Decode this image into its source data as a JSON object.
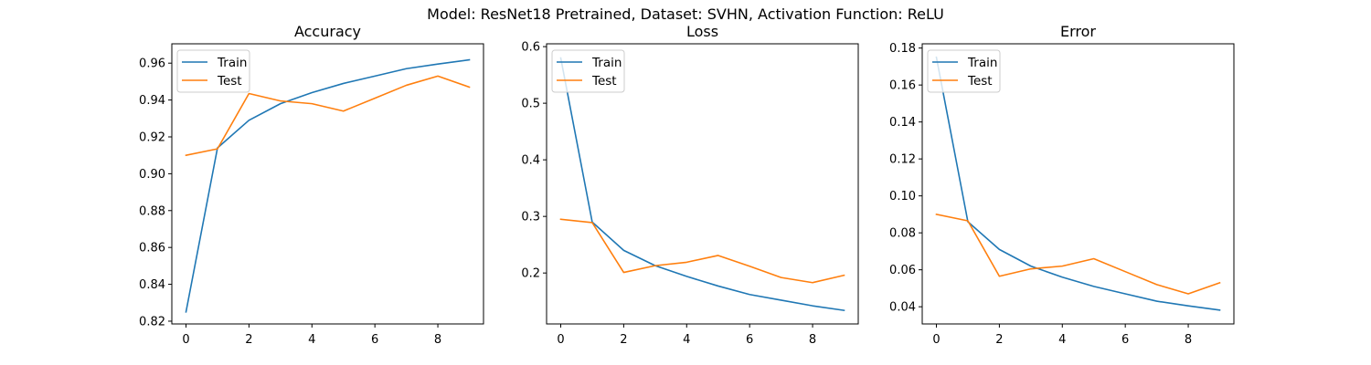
{
  "suptitle": "Model: ResNet18 Pretrained, Dataset: SVHN, Activation Function: ReLU",
  "colors": {
    "train": "#1f77b4",
    "test": "#ff7f0e"
  },
  "chart_data": [
    {
      "type": "line",
      "title": "Accuracy",
      "xlabel": "",
      "ylabel": "",
      "x": [
        0,
        1,
        2,
        3,
        4,
        5,
        6,
        7,
        8,
        9
      ],
      "xlim": [
        -0.45,
        9.45
      ],
      "ylim": [
        0.8185,
        0.9705
      ],
      "xticks": [
        0,
        2,
        4,
        6,
        8
      ],
      "yticks": [
        0.82,
        0.84,
        0.86,
        0.88,
        0.9,
        0.92,
        0.94,
        0.96
      ],
      "yticks_labels": [
        "0.82",
        "0.84",
        "0.86",
        "0.88",
        "0.90",
        "0.92",
        "0.94",
        "0.96"
      ],
      "legend": "top-left",
      "grid": false,
      "series": [
        {
          "name": "Train",
          "values": [
            0.825,
            0.914,
            0.929,
            0.938,
            0.944,
            0.949,
            0.953,
            0.957,
            0.9595,
            0.9618
          ]
        },
        {
          "name": "Test",
          "values": [
            0.91,
            0.9135,
            0.9435,
            0.9395,
            0.938,
            0.934,
            0.941,
            0.948,
            0.953,
            0.947
          ]
        }
      ]
    },
    {
      "type": "line",
      "title": "Loss",
      "xlabel": "",
      "ylabel": "",
      "x": [
        0,
        1,
        2,
        3,
        4,
        5,
        6,
        7,
        8,
        9
      ],
      "xlim": [
        -0.45,
        9.45
      ],
      "ylim": [
        0.11,
        0.605
      ],
      "xticks": [
        0,
        2,
        4,
        6,
        8
      ],
      "yticks": [
        0.2,
        0.3,
        0.4,
        0.5,
        0.6
      ],
      "yticks_labels": [
        "0.2",
        "0.3",
        "0.4",
        "0.5",
        "0.6"
      ],
      "legend": "top-left",
      "grid": false,
      "series": [
        {
          "name": "Train",
          "values": [
            0.58,
            0.29,
            0.24,
            0.213,
            0.194,
            0.177,
            0.162,
            0.152,
            0.142,
            0.134
          ]
        },
        {
          "name": "Test",
          "values": [
            0.295,
            0.289,
            0.201,
            0.213,
            0.219,
            0.231,
            0.212,
            0.192,
            0.183,
            0.196
          ]
        }
      ]
    },
    {
      "type": "line",
      "title": "Error",
      "xlabel": "",
      "ylabel": "",
      "x": [
        0,
        1,
        2,
        3,
        4,
        5,
        6,
        7,
        8,
        9
      ],
      "xlim": [
        -0.45,
        9.45
      ],
      "ylim": [
        0.0307,
        0.1823
      ],
      "xticks": [
        0,
        2,
        4,
        6,
        8
      ],
      "yticks": [
        0.04,
        0.06,
        0.08,
        0.1,
        0.12,
        0.14,
        0.16,
        0.18
      ],
      "yticks_labels": [
        "0.04",
        "0.06",
        "0.08",
        "0.10",
        "0.12",
        "0.14",
        "0.16",
        "0.18"
      ],
      "legend": "top-left",
      "grid": false,
      "series": [
        {
          "name": "Train",
          "values": [
            0.175,
            0.086,
            0.071,
            0.062,
            0.056,
            0.051,
            0.047,
            0.043,
            0.0405,
            0.0382
          ]
        },
        {
          "name": "Test",
          "values": [
            0.09,
            0.0865,
            0.0565,
            0.0605,
            0.062,
            0.066,
            0.059,
            0.052,
            0.047,
            0.053
          ]
        }
      ]
    }
  ]
}
